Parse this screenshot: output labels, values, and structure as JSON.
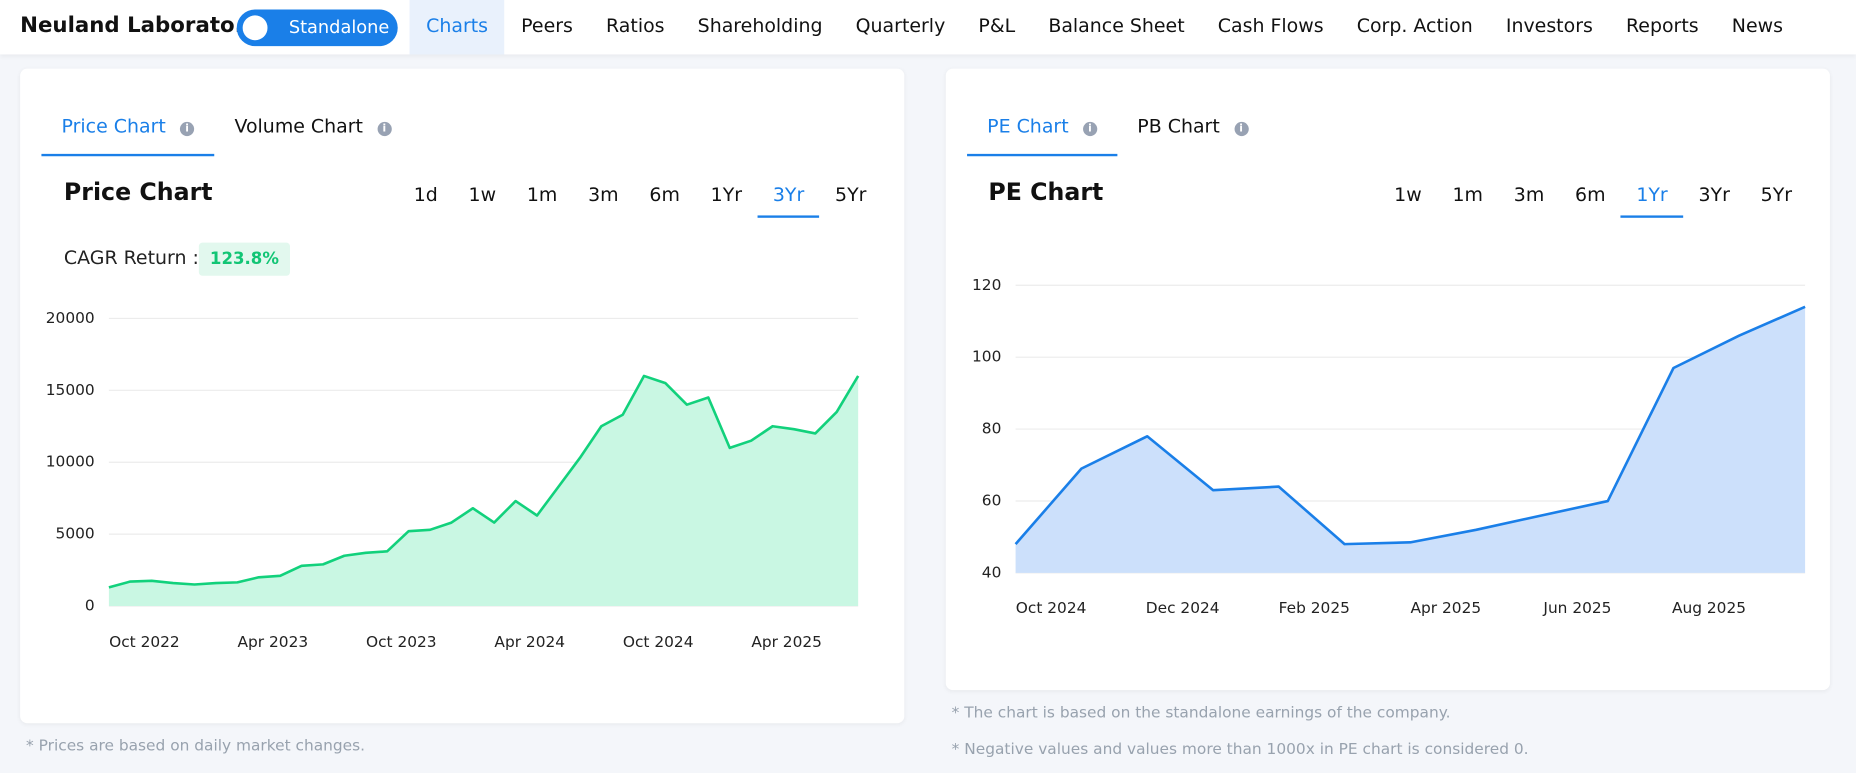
{
  "header": {
    "company": "Neuland Laborato...",
    "toggle": "Standalone",
    "nav": [
      "Charts",
      "Peers",
      "Ratios",
      "Shareholding",
      "Quarterly",
      "P&L",
      "Balance Sheet",
      "Cash Flows",
      "Corp. Action",
      "Investors",
      "Reports",
      "News"
    ],
    "active_nav": "Charts"
  },
  "left_panel": {
    "tabs": [
      "Price Chart",
      "Volume Chart"
    ],
    "heading": "Price Chart",
    "ranges": [
      "1d",
      "1w",
      "1m",
      "3m",
      "6m",
      "1Yr",
      "3Yr",
      "5Yr"
    ],
    "active_range": "3Yr",
    "cagr_label": "CAGR Return :",
    "cagr_value": "123.8%",
    "note": "* Prices are based on daily market changes."
  },
  "right_panel": {
    "tabs": [
      "PE Chart",
      "PB Chart"
    ],
    "heading": "PE Chart",
    "ranges": [
      "1w",
      "1m",
      "3m",
      "6m",
      "1Yr",
      "3Yr",
      "5Yr"
    ],
    "active_range": "1Yr",
    "notes": [
      "* The chart is based on the standalone earnings of the company.",
      "* Negative values and values more than 1000x in PE chart is considered 0."
    ]
  },
  "chart_data": [
    {
      "type": "area",
      "color": "#12d17c",
      "fill": "#c9f7e3",
      "grid": true,
      "x": [
        "2022-10",
        "2022-11",
        "2022-12",
        "2023-01",
        "2023-02",
        "2023-03",
        "2023-04",
        "2023-05",
        "2023-06",
        "2023-07",
        "2023-08",
        "2023-09",
        "2023-10",
        "2023-11",
        "2023-12",
        "2024-01",
        "2024-02",
        "2024-03",
        "2024-04",
        "2024-05",
        "2024-06",
        "2024-07",
        "2024-08",
        "2024-09",
        "2024-10",
        "2024-11",
        "2024-12",
        "2025-01",
        "2025-02",
        "2025-03",
        "2025-04",
        "2025-05",
        "2025-06",
        "2025-07",
        "2025-08",
        "2025-09"
      ],
      "values": [
        1300,
        1700,
        1750,
        1600,
        1500,
        1600,
        1650,
        2000,
        2100,
        2800,
        2900,
        3500,
        3700,
        3800,
        5200,
        5300,
        5800,
        6800,
        5800,
        7300,
        6300,
        8300,
        10300,
        12500,
        13300,
        16000,
        15500,
        14000,
        14500,
        11000,
        11500,
        12500,
        12300,
        12000,
        13500,
        16000
      ],
      "xlim": [
        "2022-10",
        "2025-09"
      ],
      "xticks": [
        {
          "value": "2022-10",
          "label": "Oct 2022"
        },
        {
          "value": "2023-04",
          "label": "Apr 2023"
        },
        {
          "value": "2023-10",
          "label": "Oct 2023"
        },
        {
          "value": "2024-04",
          "label": "Apr 2024"
        },
        {
          "value": "2024-10",
          "label": "Oct 2024"
        },
        {
          "value": "2025-04",
          "label": "Apr 2025"
        }
      ],
      "ylim": [
        0,
        20000
      ],
      "yticks": [
        0,
        5000,
        10000,
        15000,
        20000
      ]
    },
    {
      "type": "area",
      "color": "#1a7fe8",
      "fill": "#cce0fb",
      "grid": true,
      "x": [
        "2024-10",
        "2024-11",
        "2024-12",
        "2025-01",
        "2025-02",
        "2025-03",
        "2025-04",
        "2025-05",
        "2025-06",
        "2025-07",
        "2025-08",
        "2025-09",
        "2025-10"
      ],
      "values": [
        48,
        69,
        78,
        63,
        64,
        48,
        48.5,
        52,
        56,
        60,
        97,
        106,
        114
      ],
      "xlim": [
        "2024-10",
        "2025-10"
      ],
      "xticks": [
        {
          "value": "2024-10",
          "label": "Oct 2024"
        },
        {
          "value": "2024-12",
          "label": "Dec 2024"
        },
        {
          "value": "2025-02",
          "label": "Feb 2025"
        },
        {
          "value": "2025-04",
          "label": "Apr 2025"
        },
        {
          "value": "2025-06",
          "label": "Jun 2025"
        },
        {
          "value": "2025-08",
          "label": "Aug 2025"
        }
      ],
      "ylim": [
        40,
        120
      ],
      "yticks": [
        40,
        60,
        80,
        100,
        120
      ]
    }
  ]
}
